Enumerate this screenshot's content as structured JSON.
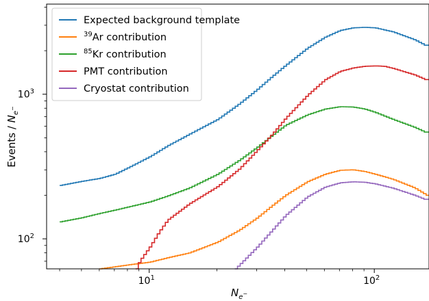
{
  "chart_data": {
    "type": "line",
    "step": true,
    "x_scale": "log",
    "y_scale": "log",
    "xlim": [
      3.5,
      175
    ],
    "ylim": [
      62,
      4200
    ],
    "xlabel": "N_{e^-}",
    "ylabel": "Events / N_{e^-}",
    "x_ticks": [
      {
        "value": 10,
        "base": "10",
        "exp": "1"
      },
      {
        "value": 100,
        "base": "10",
        "exp": "2"
      }
    ],
    "y_ticks": [
      {
        "value": 100,
        "base": "10",
        "exp": "2"
      },
      {
        "value": 1000,
        "base": "10",
        "exp": "3"
      }
    ],
    "legend_position": "top-left",
    "series": [
      {
        "name": "Expected background template",
        "legend_sup": "",
        "legend_text": "Expected background template",
        "color": "#1f77b4",
        "points": [
          [
            4,
            234
          ],
          [
            5,
            250
          ],
          [
            6,
            262
          ],
          [
            7,
            280
          ],
          [
            8,
            310
          ],
          [
            10,
            370
          ],
          [
            12,
            440
          ],
          [
            15,
            530
          ],
          [
            20,
            670
          ],
          [
            25,
            860
          ],
          [
            30,
            1080
          ],
          [
            35,
            1330
          ],
          [
            40,
            1580
          ],
          [
            50,
            2080
          ],
          [
            60,
            2480
          ],
          [
            70,
            2760
          ],
          [
            80,
            2880
          ],
          [
            90,
            2900
          ],
          [
            100,
            2880
          ],
          [
            120,
            2700
          ],
          [
            150,
            2380
          ],
          [
            170,
            2150
          ]
        ]
      },
      {
        "name": "39Ar contribution",
        "legend_sup": "39",
        "legend_text": "Ar contribution",
        "color": "#ff7f0e",
        "points": [
          [
            6,
            62
          ],
          [
            8,
            66
          ],
          [
            10,
            69
          ],
          [
            12,
            74
          ],
          [
            15,
            80
          ],
          [
            20,
            95
          ],
          [
            25,
            115
          ],
          [
            30,
            140
          ],
          [
            35,
            170
          ],
          [
            40,
            200
          ],
          [
            50,
            248
          ],
          [
            60,
            280
          ],
          [
            70,
            298
          ],
          [
            80,
            300
          ],
          [
            90,
            292
          ],
          [
            100,
            280
          ],
          [
            120,
            258
          ],
          [
            150,
            225
          ],
          [
            170,
            200
          ]
        ]
      },
      {
        "name": "85Kr contribution",
        "legend_sup": "85",
        "legend_text": "Kr contribution",
        "color": "#2ca02c",
        "points": [
          [
            4,
            131
          ],
          [
            5,
            140
          ],
          [
            6,
            150
          ],
          [
            7,
            158
          ],
          [
            8,
            166
          ],
          [
            10,
            180
          ],
          [
            12,
            198
          ],
          [
            15,
            225
          ],
          [
            20,
            280
          ],
          [
            25,
            350
          ],
          [
            30,
            430
          ],
          [
            35,
            520
          ],
          [
            40,
            610
          ],
          [
            50,
            720
          ],
          [
            60,
            790
          ],
          [
            70,
            820
          ],
          [
            80,
            815
          ],
          [
            90,
            790
          ],
          [
            100,
            750
          ],
          [
            120,
            670
          ],
          [
            150,
            590
          ],
          [
            170,
            540
          ]
        ]
      },
      {
        "name": "PMT contribution",
        "legend_sup": "",
        "legend_text": "PMT contribution",
        "color": "#d62728",
        "points": [
          [
            8.7,
            62
          ],
          [
            9,
            70
          ],
          [
            10,
            88
          ],
          [
            11,
            112
          ],
          [
            12,
            135
          ],
          [
            15,
            175
          ],
          [
            20,
            230
          ],
          [
            25,
            305
          ],
          [
            30,
            410
          ],
          [
            35,
            530
          ],
          [
            40,
            680
          ],
          [
            50,
            980
          ],
          [
            60,
            1260
          ],
          [
            70,
            1440
          ],
          [
            80,
            1520
          ],
          [
            90,
            1560
          ],
          [
            100,
            1570
          ],
          [
            110,
            1560
          ],
          [
            120,
            1510
          ],
          [
            150,
            1360
          ],
          [
            170,
            1250
          ]
        ]
      },
      {
        "name": "Cryostat contribution",
        "legend_sup": "",
        "legend_text": "Cryostat contribution",
        "color": "#9467bd",
        "points": [
          [
            24,
            62
          ],
          [
            25,
            66
          ],
          [
            30,
            88
          ],
          [
            35,
            115
          ],
          [
            40,
            145
          ],
          [
            50,
            195
          ],
          [
            60,
            228
          ],
          [
            70,
            244
          ],
          [
            80,
            248
          ],
          [
            90,
            246
          ],
          [
            100,
            240
          ],
          [
            120,
            224
          ],
          [
            150,
            200
          ],
          [
            170,
            185
          ]
        ]
      }
    ]
  }
}
